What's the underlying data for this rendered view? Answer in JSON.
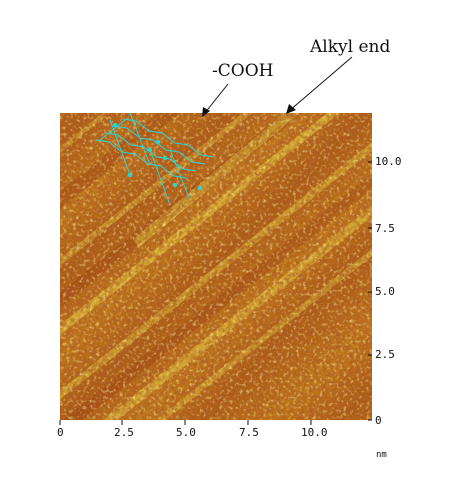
{
  "image": {
    "description_type": "scanning tunneling microscopy micrograph",
    "colors": {
      "dark": "#8b2a0a",
      "mid": "#c07a18",
      "light": "#e8d040",
      "overlay": "#26d7dc"
    }
  },
  "annotations": {
    "cooh_label": "-COOH",
    "alkyl_label": "Alkyl end"
  },
  "axes": {
    "unit": "nm",
    "x_ticks": [
      "0",
      "2.5",
      "5.0",
      "7.5",
      "10.0"
    ],
    "y_ticks": [
      "0",
      "2.5",
      "5.0",
      "7.5",
      "10.0"
    ]
  }
}
